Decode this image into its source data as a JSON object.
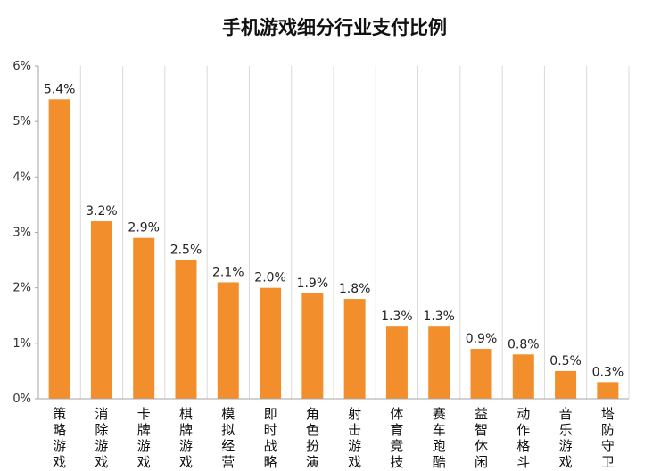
{
  "chart_data": {
    "type": "bar",
    "title": "手机游戏细分行业支付比例",
    "categories": [
      "策略游戏",
      "消除游戏",
      "卡牌游戏",
      "棋牌游戏",
      "模拟经营",
      "即时战略",
      "角色扮演",
      "射击游戏",
      "体育竞技",
      "赛车跑酷",
      "益智休闲",
      "动作格斗",
      "音乐游戏",
      "塔防守卫"
    ],
    "values": [
      5.4,
      3.2,
      2.9,
      2.5,
      2.1,
      2.0,
      1.9,
      1.8,
      1.3,
      1.3,
      0.9,
      0.8,
      0.5,
      0.3
    ],
    "data_labels": [
      "5.4%",
      "3.2%",
      "2.9%",
      "2.5%",
      "2.1%",
      "2.0%",
      "1.9%",
      "1.8%",
      "1.3%",
      "1.3%",
      "0.9%",
      "0.8%",
      "0.5%",
      "0.3%"
    ],
    "yticks": [
      0,
      1,
      2,
      3,
      4,
      5,
      6
    ],
    "ytick_labels": [
      "0%",
      "1%",
      "2%",
      "3%",
      "4%",
      "5%",
      "6%"
    ],
    "ylim": [
      0,
      6
    ],
    "grid": "vertical-separators",
    "legend": "none",
    "bar_color": "#F28F2C",
    "grid_color": "#D9D9D9",
    "axis_color": "#A6A6A6"
  }
}
